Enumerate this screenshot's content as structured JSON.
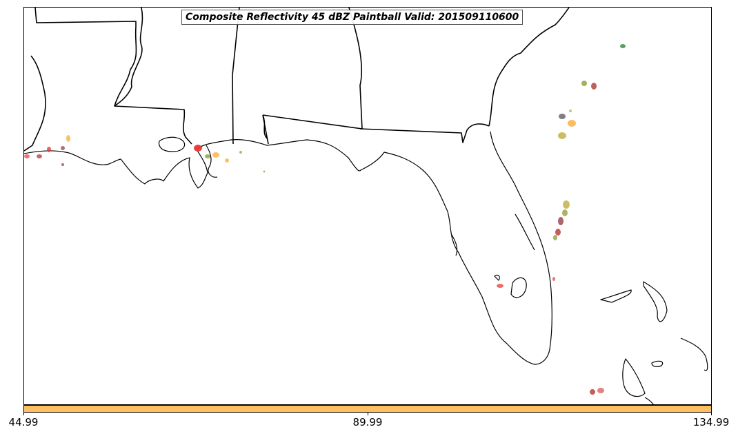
{
  "title": "Composite Reflectivity 45 dBZ Paintball Valid: 201509110600",
  "colorbar": {
    "color": "#fdbf5f",
    "ticks": [
      "44.99",
      "89.99",
      "134.99"
    ]
  },
  "paintball_colors": [
    "#e8383a",
    "#b5443f",
    "#a04a52",
    "#fbb046",
    "#9ea54e",
    "#c2b24a",
    "#2e8b3a",
    "#5f5f5f",
    "#d84a4a"
  ]
}
